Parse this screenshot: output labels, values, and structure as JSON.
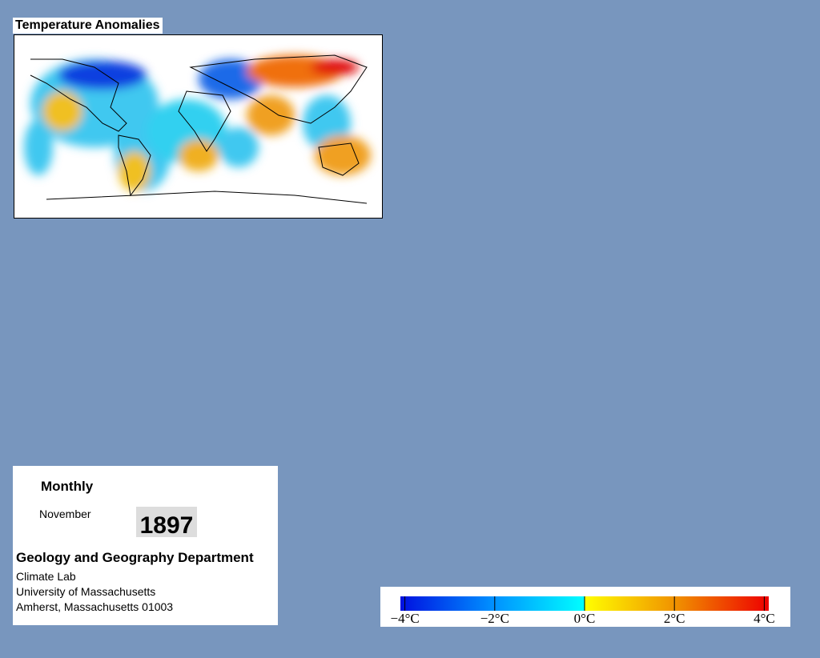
{
  "header": {
    "title": "Temperature Anomalies"
  },
  "info": {
    "period": "Monthly",
    "month": "November",
    "year": "1897",
    "department": "Geology and Geography Department",
    "lines": [
      "Climate Lab",
      "University of Massachusetts",
      "Amherst, Massachusetts 01003"
    ]
  },
  "colorbar": {
    "lim": [
      -4.1,
      4.1
    ],
    "ticks": [
      {
        "value": -4,
        "label": "−4°C"
      },
      {
        "value": -2,
        "label": "−2°C"
      },
      {
        "value": 0,
        "label": "0°C"
      },
      {
        "value": 2,
        "label": "2°C"
      },
      {
        "value": 4,
        "label": "4°C"
      }
    ]
  }
}
